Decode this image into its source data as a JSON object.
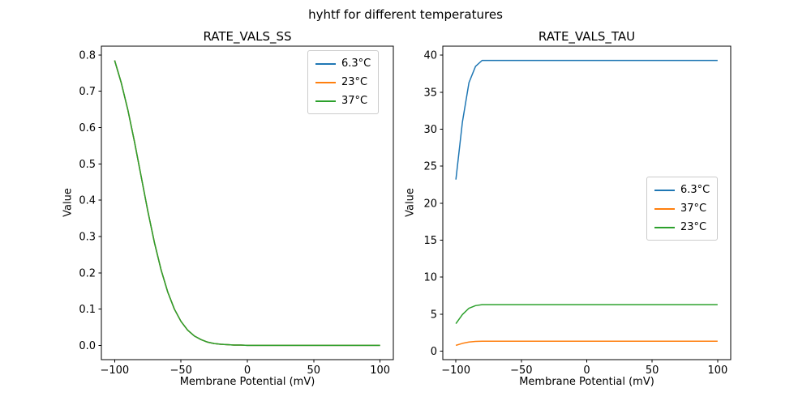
{
  "figure": {
    "title": "hyhtf for different temperatures",
    "background": "#ffffff"
  },
  "colors": {
    "blue": "#1f77b4",
    "orange": "#ff7f0e",
    "green": "#2ca02c"
  },
  "chart_data": [
    {
      "type": "line",
      "title": "RATE_VALS_SS",
      "xlabel": "Membrane Potential (mV)",
      "ylabel": "Value",
      "xlim": [
        -110,
        110
      ],
      "ylim": [
        -0.0393,
        0.8243
      ],
      "xticks": [
        -100,
        -50,
        0,
        50,
        100
      ],
      "xticklabels": [
        "−100",
        "−50",
        "0",
        "50",
        "100"
      ],
      "yticks": [
        0.0,
        0.1,
        0.2,
        0.3,
        0.4,
        0.5,
        0.6,
        0.7,
        0.8
      ],
      "yticklabels": [
        "0.0",
        "0.1",
        "0.2",
        "0.3",
        "0.4",
        "0.5",
        "0.6",
        "0.7",
        "0.8"
      ],
      "grid": false,
      "legend_loc": "upper right",
      "note": "All three temperature curves overlap exactly; the green (37°C) curve is drawn last and is the visible one.",
      "x": [
        -100,
        -95,
        -90,
        -85,
        -80,
        -75,
        -70,
        -65,
        -60,
        -55,
        -50,
        -45,
        -40,
        -35,
        -30,
        -25,
        -20,
        -15,
        -10,
        -5,
        0,
        20,
        40,
        60,
        80,
        100
      ],
      "series": [
        {
          "name": "6.3°C",
          "color": "#1f77b4",
          "values": [
            0.785,
            0.723,
            0.648,
            0.56,
            0.465,
            0.37,
            0.283,
            0.208,
            0.147,
            0.1,
            0.066,
            0.042,
            0.026,
            0.016,
            0.009,
            0.005,
            0.003,
            0.002,
            0.001,
            0.001,
            0.0,
            0.0,
            0.0,
            0.0,
            0.0,
            0.0
          ]
        },
        {
          "name": "23°C",
          "color": "#ff7f0e",
          "values": [
            0.785,
            0.723,
            0.648,
            0.56,
            0.465,
            0.37,
            0.283,
            0.208,
            0.147,
            0.1,
            0.066,
            0.042,
            0.026,
            0.016,
            0.009,
            0.005,
            0.003,
            0.002,
            0.001,
            0.001,
            0.0,
            0.0,
            0.0,
            0.0,
            0.0,
            0.0
          ]
        },
        {
          "name": "37°C",
          "color": "#2ca02c",
          "values": [
            0.785,
            0.723,
            0.648,
            0.56,
            0.465,
            0.37,
            0.283,
            0.208,
            0.147,
            0.1,
            0.066,
            0.042,
            0.026,
            0.016,
            0.009,
            0.005,
            0.003,
            0.002,
            0.001,
            0.001,
            0.0,
            0.0,
            0.0,
            0.0,
            0.0,
            0.0
          ]
        }
      ]
    },
    {
      "type": "line",
      "title": "RATE_VALS_TAU",
      "xlabel": "Membrane Potential (mV)",
      "ylabel": "Value",
      "xlim": [
        -110,
        110
      ],
      "ylim": [
        -1.14,
        41.23
      ],
      "xticks": [
        -100,
        -50,
        0,
        50,
        100
      ],
      "xticklabels": [
        "−100",
        "−50",
        "0",
        "50",
        "100"
      ],
      "yticks": [
        0,
        5,
        10,
        15,
        20,
        25,
        30,
        35,
        40
      ],
      "yticklabels": [
        "0",
        "5",
        "10",
        "15",
        "20",
        "25",
        "30",
        "35",
        "40"
      ],
      "grid": false,
      "legend_loc": "center right",
      "note": "Time constants rise steeply from −100 mV and plateau near −80 mV: 6.3°C ≈ 39.3, 23°C ≈ 6.3, 37°C ≈ 1.35.",
      "x": [
        -100,
        -95,
        -90,
        -85,
        -80,
        -75,
        -70,
        -65,
        -60,
        -55,
        -50,
        -45,
        -40,
        -35,
        -30,
        -25,
        -20,
        -15,
        -10,
        -5,
        0,
        20,
        40,
        60,
        80,
        100
      ],
      "series": [
        {
          "name": "6.3°C",
          "color": "#1f77b4",
          "values": [
            23.2,
            31.0,
            36.3,
            38.5,
            39.3,
            39.3,
            39.3,
            39.3,
            39.3,
            39.3,
            39.3,
            39.3,
            39.3,
            39.3,
            39.3,
            39.3,
            39.3,
            39.3,
            39.3,
            39.3,
            39.3,
            39.3,
            39.3,
            39.3,
            39.3,
            39.3
          ]
        },
        {
          "name": "37°C",
          "color": "#ff7f0e",
          "values": [
            0.79,
            1.06,
            1.24,
            1.32,
            1.35,
            1.35,
            1.35,
            1.35,
            1.35,
            1.35,
            1.35,
            1.35,
            1.35,
            1.35,
            1.35,
            1.35,
            1.35,
            1.35,
            1.35,
            1.35,
            1.35,
            1.35,
            1.35,
            1.35,
            1.35,
            1.35
          ]
        },
        {
          "name": "23°C",
          "color": "#2ca02c",
          "values": [
            3.72,
            4.96,
            5.81,
            6.16,
            6.29,
            6.29,
            6.29,
            6.29,
            6.29,
            6.29,
            6.29,
            6.29,
            6.29,
            6.29,
            6.29,
            6.29,
            6.29,
            6.29,
            6.29,
            6.29,
            6.29,
            6.29,
            6.29,
            6.29,
            6.29,
            6.29
          ]
        }
      ]
    }
  ]
}
